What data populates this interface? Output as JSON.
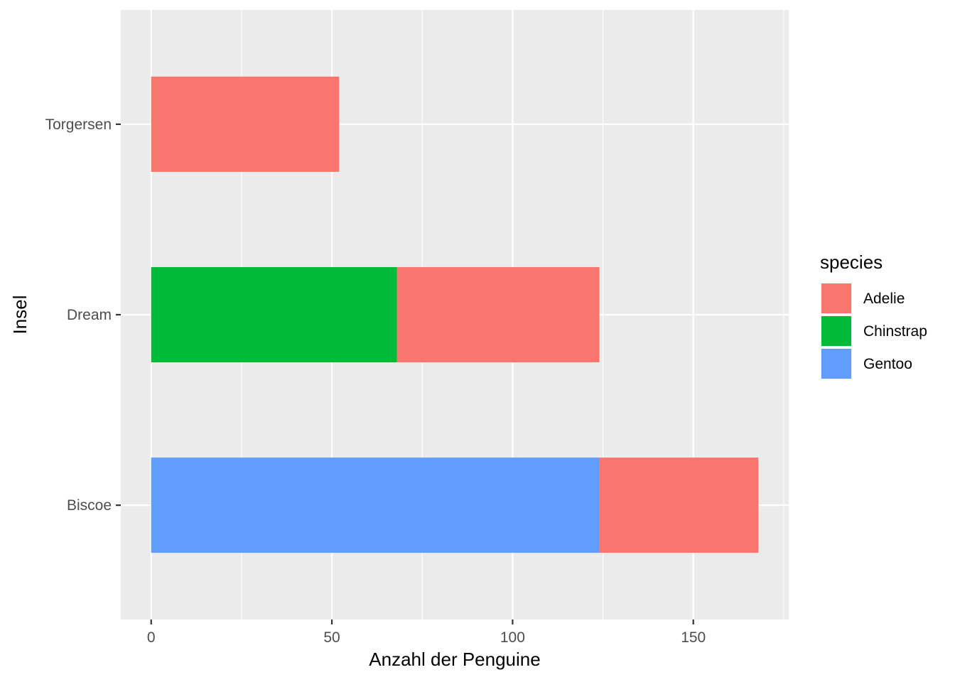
{
  "chart_data": {
    "type": "bar",
    "orientation": "horizontal",
    "stacked": true,
    "title": "",
    "xlabel": "Anzahl der Penguine",
    "ylabel": "Insel",
    "categories": [
      "Biscoe",
      "Dream",
      "Torgersen"
    ],
    "series": [
      {
        "name": "Adelie",
        "color": "#F8766D",
        "values": [
          44,
          56,
          52
        ]
      },
      {
        "name": "Chinstrap",
        "color": "#00BA38",
        "values": [
          0,
          68,
          0
        ]
      },
      {
        "name": "Gentoo",
        "color": "#619CFF",
        "values": [
          124,
          0,
          0
        ]
      }
    ],
    "stack_order": [
      "Gentoo",
      "Chinstrap",
      "Adelie"
    ],
    "xlim": [
      -8.4,
      176.4
    ],
    "x_ticks": [
      0,
      50,
      100,
      150
    ],
    "x_tick_labels": [
      "0",
      "50",
      "100",
      "150"
    ],
    "grid": true,
    "legend": {
      "title": "species",
      "position": "right",
      "entries": [
        "Adelie",
        "Chinstrap",
        "Gentoo"
      ]
    },
    "panel_background": "#EBEBEB",
    "grid_color": "#FFFFFF"
  }
}
